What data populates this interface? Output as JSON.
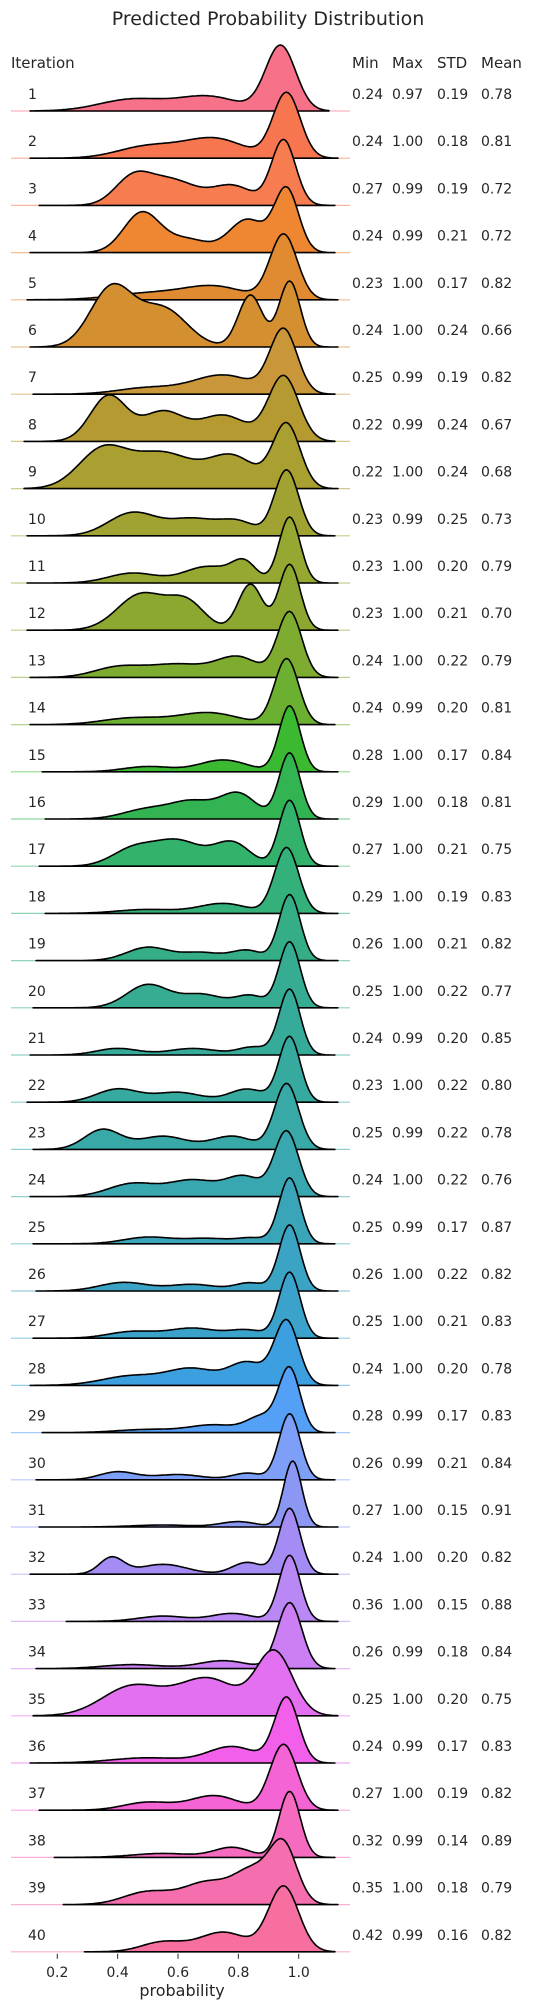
{
  "chart_data": {
    "type": "area",
    "title": "Predicted Probability Distribution",
    "xlabel": "probability",
    "ylabel": "",
    "xlim": [
      0.05,
      1.17
    ],
    "x_ticks": [
      "0.2",
      "0.4",
      "0.6",
      "0.8",
      "1.0"
    ],
    "x_tick_values": [
      0.2,
      0.4,
      0.6,
      0.8,
      1.0
    ],
    "row_header": "Iteration",
    "stat_headers": [
      "Min",
      "Max",
      "STD",
      "Mean"
    ],
    "grid": false,
    "series": [
      {
        "name": "1",
        "min": 0.24,
        "max": 0.97,
        "std": 0.19,
        "mean": 0.78,
        "color": "#f77189",
        "bumps": [
          [
            0.45,
            0.11,
            0.18
          ],
          [
            0.7,
            0.1,
            0.22
          ],
          [
            0.94,
            0.05,
            1.0
          ]
        ]
      },
      {
        "name": "2",
        "min": 0.24,
        "max": 1.0,
        "std": 0.18,
        "mean": 0.81,
        "color": "#f7754f",
        "bumps": [
          [
            0.5,
            0.1,
            0.18
          ],
          [
            0.72,
            0.1,
            0.3
          ],
          [
            0.96,
            0.045,
            1.0
          ]
        ]
      },
      {
        "name": "3",
        "min": 0.27,
        "max": 0.99,
        "std": 0.19,
        "mean": 0.72,
        "color": "#f77d50",
        "bumps": [
          [
            0.45,
            0.06,
            0.4
          ],
          [
            0.58,
            0.08,
            0.38
          ],
          [
            0.78,
            0.07,
            0.3
          ],
          [
            0.95,
            0.04,
            1.0
          ]
        ]
      },
      {
        "name": "4",
        "min": 0.24,
        "max": 0.99,
        "std": 0.21,
        "mean": 0.72,
        "color": "#ee8632",
        "bumps": [
          [
            0.48,
            0.06,
            0.6
          ],
          [
            0.63,
            0.07,
            0.2
          ],
          [
            0.83,
            0.06,
            0.5
          ],
          [
            0.96,
            0.04,
            0.95
          ]
        ]
      },
      {
        "name": "5",
        "min": 0.23,
        "max": 1.0,
        "std": 0.17,
        "mean": 0.82,
        "color": "#e08a31",
        "bumps": [
          [
            0.5,
            0.12,
            0.1
          ],
          [
            0.72,
            0.1,
            0.2
          ],
          [
            0.95,
            0.045,
            1.0
          ]
        ]
      },
      {
        "name": "6",
        "min": 0.24,
        "max": 1.0,
        "std": 0.24,
        "mean": 0.66,
        "color": "#d48f31",
        "bumps": [
          [
            0.38,
            0.07,
            0.85
          ],
          [
            0.55,
            0.08,
            0.55
          ],
          [
            0.84,
            0.04,
            0.75
          ],
          [
            0.97,
            0.035,
            0.95
          ]
        ]
      },
      {
        "name": "7",
        "min": 0.25,
        "max": 0.99,
        "std": 0.19,
        "mean": 0.82,
        "color": "#c9963a",
        "bumps": [
          [
            0.5,
            0.1,
            0.1
          ],
          [
            0.75,
            0.1,
            0.3
          ],
          [
            0.95,
            0.045,
            1.0
          ]
        ]
      },
      {
        "name": "8",
        "min": 0.22,
        "max": 0.99,
        "std": 0.24,
        "mean": 0.67,
        "color": "#b59a31",
        "bumps": [
          [
            0.37,
            0.06,
            0.7
          ],
          [
            0.55,
            0.07,
            0.45
          ],
          [
            0.75,
            0.08,
            0.4
          ],
          [
            0.95,
            0.05,
            1.0
          ]
        ]
      },
      {
        "name": "9",
        "min": 0.22,
        "max": 1.0,
        "std": 0.24,
        "mean": 0.68,
        "color": "#aa9f31",
        "bumps": [
          [
            0.35,
            0.08,
            0.6
          ],
          [
            0.55,
            0.1,
            0.55
          ],
          [
            0.78,
            0.08,
            0.5
          ],
          [
            0.96,
            0.045,
            1.0
          ]
        ]
      },
      {
        "name": "10",
        "min": 0.23,
        "max": 0.99,
        "std": 0.25,
        "mean": 0.73,
        "color": "#a0a331",
        "bumps": [
          [
            0.45,
            0.08,
            0.35
          ],
          [
            0.65,
            0.08,
            0.25
          ],
          [
            0.8,
            0.06,
            0.2
          ],
          [
            0.96,
            0.04,
            1.0
          ]
        ]
      },
      {
        "name": "11",
        "min": 0.23,
        "max": 1.0,
        "std": 0.2,
        "mean": 0.79,
        "color": "#96a831",
        "bumps": [
          [
            0.45,
            0.08,
            0.15
          ],
          [
            0.7,
            0.08,
            0.25
          ],
          [
            0.82,
            0.04,
            0.28
          ],
          [
            0.97,
            0.035,
            1.0
          ]
        ]
      },
      {
        "name": "12",
        "min": 0.23,
        "max": 1.0,
        "std": 0.21,
        "mean": 0.7,
        "color": "#8ca831",
        "bumps": [
          [
            0.48,
            0.08,
            0.55
          ],
          [
            0.63,
            0.06,
            0.4
          ],
          [
            0.84,
            0.04,
            0.7
          ],
          [
            0.97,
            0.035,
            1.0
          ]
        ]
      },
      {
        "name": "13",
        "min": 0.24,
        "max": 1.0,
        "std": 0.22,
        "mean": 0.79,
        "color": "#7eac31",
        "bumps": [
          [
            0.4,
            0.08,
            0.15
          ],
          [
            0.6,
            0.1,
            0.2
          ],
          [
            0.8,
            0.07,
            0.3
          ],
          [
            0.97,
            0.04,
            1.0
          ]
        ]
      },
      {
        "name": "14",
        "min": 0.24,
        "max": 0.99,
        "std": 0.2,
        "mean": 0.81,
        "color": "#6cb031",
        "bumps": [
          [
            0.45,
            0.1,
            0.1
          ],
          [
            0.7,
            0.1,
            0.18
          ],
          [
            0.96,
            0.04,
            1.0
          ]
        ]
      },
      {
        "name": "15",
        "min": 0.28,
        "max": 1.0,
        "std": 0.17,
        "mean": 0.84,
        "color": "#3ab931",
        "bumps": [
          [
            0.5,
            0.08,
            0.08
          ],
          [
            0.75,
            0.08,
            0.18
          ],
          [
            0.97,
            0.035,
            1.0
          ]
        ]
      },
      {
        "name": "16",
        "min": 0.29,
        "max": 1.0,
        "std": 0.18,
        "mean": 0.81,
        "color": "#32b452",
        "bumps": [
          [
            0.5,
            0.08,
            0.15
          ],
          [
            0.65,
            0.07,
            0.25
          ],
          [
            0.8,
            0.06,
            0.38
          ],
          [
            0.97,
            0.035,
            1.0
          ]
        ]
      },
      {
        "name": "17",
        "min": 0.27,
        "max": 1.0,
        "std": 0.21,
        "mean": 0.75,
        "color": "#33b26b",
        "bumps": [
          [
            0.45,
            0.07,
            0.25
          ],
          [
            0.6,
            0.08,
            0.38
          ],
          [
            0.78,
            0.06,
            0.35
          ],
          [
            0.97,
            0.035,
            1.0
          ]
        ]
      },
      {
        "name": "18",
        "min": 0.29,
        "max": 1.0,
        "std": 0.19,
        "mean": 0.83,
        "color": "#34b07a",
        "bumps": [
          [
            0.5,
            0.1,
            0.06
          ],
          [
            0.75,
            0.08,
            0.15
          ],
          [
            0.96,
            0.04,
            1.0
          ]
        ]
      },
      {
        "name": "19",
        "min": 0.26,
        "max": 1.0,
        "std": 0.21,
        "mean": 0.82,
        "color": "#35ae88",
        "bumps": [
          [
            0.5,
            0.07,
            0.2
          ],
          [
            0.68,
            0.07,
            0.12
          ],
          [
            0.83,
            0.05,
            0.15
          ],
          [
            0.97,
            0.035,
            1.0
          ]
        ]
      },
      {
        "name": "20",
        "min": 0.25,
        "max": 1.0,
        "std": 0.22,
        "mean": 0.77,
        "color": "#36ad92",
        "bumps": [
          [
            0.5,
            0.07,
            0.35
          ],
          [
            0.68,
            0.07,
            0.2
          ],
          [
            0.84,
            0.05,
            0.18
          ],
          [
            0.97,
            0.035,
            1.0
          ]
        ]
      },
      {
        "name": "21",
        "min": 0.24,
        "max": 0.99,
        "std": 0.2,
        "mean": 0.85,
        "color": "#36ab9a",
        "bumps": [
          [
            0.4,
            0.07,
            0.1
          ],
          [
            0.65,
            0.08,
            0.1
          ],
          [
            0.85,
            0.05,
            0.12
          ],
          [
            0.97,
            0.035,
            1.0
          ]
        ]
      },
      {
        "name": "22",
        "min": 0.23,
        "max": 1.0,
        "std": 0.22,
        "mean": 0.8,
        "color": "#37aaa0",
        "bumps": [
          [
            0.4,
            0.07,
            0.2
          ],
          [
            0.6,
            0.08,
            0.15
          ],
          [
            0.83,
            0.06,
            0.2
          ],
          [
            0.97,
            0.035,
            1.0
          ]
        ]
      },
      {
        "name": "23",
        "min": 0.25,
        "max": 0.99,
        "std": 0.22,
        "mean": 0.78,
        "color": "#38a9a7",
        "bumps": [
          [
            0.35,
            0.06,
            0.3
          ],
          [
            0.55,
            0.08,
            0.2
          ],
          [
            0.78,
            0.07,
            0.2
          ],
          [
            0.96,
            0.04,
            1.0
          ]
        ]
      },
      {
        "name": "24",
        "min": 0.24,
        "max": 1.0,
        "std": 0.22,
        "mean": 0.76,
        "color": "#39a7b0",
        "bumps": [
          [
            0.45,
            0.08,
            0.2
          ],
          [
            0.65,
            0.08,
            0.25
          ],
          [
            0.82,
            0.06,
            0.3
          ],
          [
            0.96,
            0.04,
            1.0
          ]
        ]
      },
      {
        "name": "25",
        "min": 0.25,
        "max": 0.99,
        "std": 0.17,
        "mean": 0.87,
        "color": "#3aa5b9",
        "bumps": [
          [
            0.5,
            0.08,
            0.1
          ],
          [
            0.7,
            0.08,
            0.08
          ],
          [
            0.85,
            0.05,
            0.08
          ],
          [
            0.97,
            0.035,
            1.0
          ]
        ]
      },
      {
        "name": "26",
        "min": 0.26,
        "max": 1.0,
        "std": 0.22,
        "mean": 0.82,
        "color": "#3ba3c3",
        "bumps": [
          [
            0.42,
            0.08,
            0.13
          ],
          [
            0.65,
            0.08,
            0.1
          ],
          [
            0.84,
            0.05,
            0.12
          ],
          [
            0.97,
            0.035,
            1.0
          ]
        ]
      },
      {
        "name": "27",
        "min": 0.25,
        "max": 1.0,
        "std": 0.21,
        "mean": 0.83,
        "color": "#3ba2cc",
        "bumps": [
          [
            0.45,
            0.08,
            0.1
          ],
          [
            0.65,
            0.08,
            0.15
          ],
          [
            0.83,
            0.06,
            0.12
          ],
          [
            0.97,
            0.035,
            1.0
          ]
        ]
      },
      {
        "name": "28",
        "min": 0.24,
        "max": 1.0,
        "std": 0.2,
        "mean": 0.78,
        "color": "#3c9fe0",
        "bumps": [
          [
            0.45,
            0.1,
            0.15
          ],
          [
            0.65,
            0.08,
            0.25
          ],
          [
            0.83,
            0.06,
            0.35
          ],
          [
            0.96,
            0.04,
            1.0
          ]
        ]
      },
      {
        "name": "29",
        "min": 0.28,
        "max": 0.99,
        "std": 0.17,
        "mean": 0.83,
        "color": "#55a0f7",
        "bumps": [
          [
            0.5,
            0.1,
            0.05
          ],
          [
            0.72,
            0.08,
            0.12
          ],
          [
            0.88,
            0.05,
            0.25
          ],
          [
            0.97,
            0.035,
            1.0
          ]
        ]
      },
      {
        "name": "30",
        "min": 0.26,
        "max": 0.99,
        "std": 0.21,
        "mean": 0.84,
        "color": "#7e9ff7",
        "bumps": [
          [
            0.4,
            0.06,
            0.12
          ],
          [
            0.6,
            0.08,
            0.08
          ],
          [
            0.83,
            0.05,
            0.1
          ],
          [
            0.97,
            0.035,
            1.0
          ]
        ]
      },
      {
        "name": "31",
        "min": 0.27,
        "max": 1.0,
        "std": 0.15,
        "mean": 0.91,
        "color": "#8c97f4",
        "bumps": [
          [
            0.55,
            0.1,
            0.03
          ],
          [
            0.8,
            0.06,
            0.08
          ],
          [
            0.98,
            0.03,
            1.0
          ]
        ]
      },
      {
        "name": "32",
        "min": 0.24,
        "max": 1.0,
        "std": 0.2,
        "mean": 0.82,
        "color": "#a48cf4",
        "bumps": [
          [
            0.38,
            0.04,
            0.25
          ],
          [
            0.55,
            0.08,
            0.15
          ],
          [
            0.83,
            0.05,
            0.18
          ],
          [
            0.97,
            0.035,
            1.0
          ]
        ]
      },
      {
        "name": "33",
        "min": 0.36,
        "max": 1.0,
        "std": 0.15,
        "mean": 0.88,
        "color": "#b988f4",
        "bumps": [
          [
            0.55,
            0.08,
            0.08
          ],
          [
            0.78,
            0.07,
            0.12
          ],
          [
            0.97,
            0.035,
            1.0
          ]
        ]
      },
      {
        "name": "34",
        "min": 0.26,
        "max": 0.99,
        "std": 0.18,
        "mean": 0.84,
        "color": "#cc7ff4",
        "bumps": [
          [
            0.45,
            0.1,
            0.06
          ],
          [
            0.75,
            0.08,
            0.12
          ],
          [
            0.97,
            0.04,
            1.0
          ]
        ]
      },
      {
        "name": "35",
        "min": 0.25,
        "max": 1.0,
        "std": 0.2,
        "mean": 0.75,
        "color": "#e370f0",
        "bumps": [
          [
            0.45,
            0.1,
            0.4
          ],
          [
            0.7,
            0.1,
            0.5
          ],
          [
            0.92,
            0.06,
            0.85
          ]
        ]
      },
      {
        "name": "36",
        "min": 0.24,
        "max": 0.99,
        "std": 0.17,
        "mean": 0.83,
        "color": "#f25fea",
        "bumps": [
          [
            0.5,
            0.12,
            0.08
          ],
          [
            0.78,
            0.08,
            0.25
          ],
          [
            0.96,
            0.04,
            1.0
          ]
        ]
      },
      {
        "name": "37",
        "min": 0.27,
        "max": 1.0,
        "std": 0.19,
        "mean": 0.82,
        "color": "#f564d4",
        "bumps": [
          [
            0.5,
            0.08,
            0.12
          ],
          [
            0.72,
            0.08,
            0.22
          ],
          [
            0.95,
            0.045,
            1.0
          ]
        ]
      },
      {
        "name": "38",
        "min": 0.32,
        "max": 0.99,
        "std": 0.14,
        "mean": 0.89,
        "color": "#f56bc0",
        "bumps": [
          [
            0.55,
            0.1,
            0.06
          ],
          [
            0.78,
            0.06,
            0.15
          ],
          [
            0.97,
            0.035,
            1.0
          ]
        ]
      },
      {
        "name": "39",
        "min": 0.35,
        "max": 1.0,
        "std": 0.18,
        "mean": 0.79,
        "color": "#f56eae",
        "bumps": [
          [
            0.5,
            0.08,
            0.2
          ],
          [
            0.7,
            0.08,
            0.35
          ],
          [
            0.85,
            0.06,
            0.5
          ],
          [
            0.95,
            0.045,
            0.9
          ]
        ]
      },
      {
        "name": "40",
        "min": 0.42,
        "max": 0.99,
        "std": 0.16,
        "mean": 0.82,
        "color": "#f66fa0",
        "bumps": [
          [
            0.55,
            0.07,
            0.15
          ],
          [
            0.75,
            0.08,
            0.3
          ],
          [
            0.95,
            0.05,
            1.0
          ]
        ]
      }
    ]
  }
}
